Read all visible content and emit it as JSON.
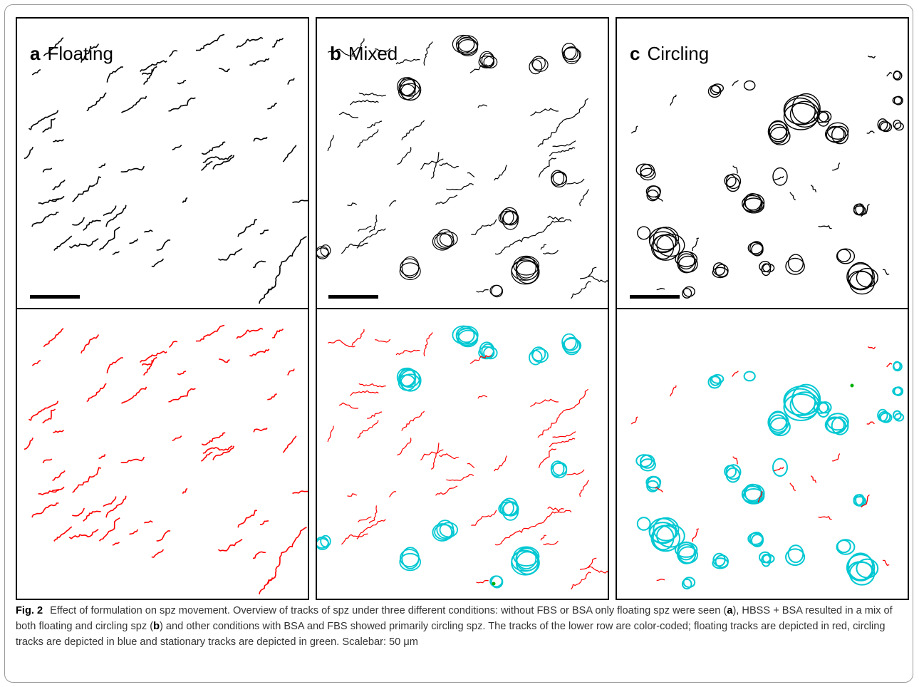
{
  "figure": {
    "panels": [
      {
        "letter": "a",
        "title": "Floating"
      },
      {
        "letter": "b",
        "title": "Mixed"
      },
      {
        "letter": "c",
        "title": "Circling"
      }
    ],
    "colors": {
      "floating": "#ff0000",
      "circling": "#00c8d2",
      "stationary": "#00b000",
      "raw_track": "#000000"
    }
  },
  "caption": {
    "fig_label": "Fig. 2",
    "part1": "Effect of formulation on spz movement. Overview of tracks of spz under three different conditions: without FBS or BSA only floating spz were seen (",
    "ref_a": "a",
    "part2": "), HBSS + BSA resulted in a mix of both floating and circling spz (",
    "ref_b": "b",
    "part3": ") and other conditions with BSA and FBS showed primarily circling spz. The tracks of the lower row are color-coded; floating tracks are depicted in red, circling tracks are depicted in blue and stationary tracks are depicted in green. Scalebar: 50 μm"
  }
}
